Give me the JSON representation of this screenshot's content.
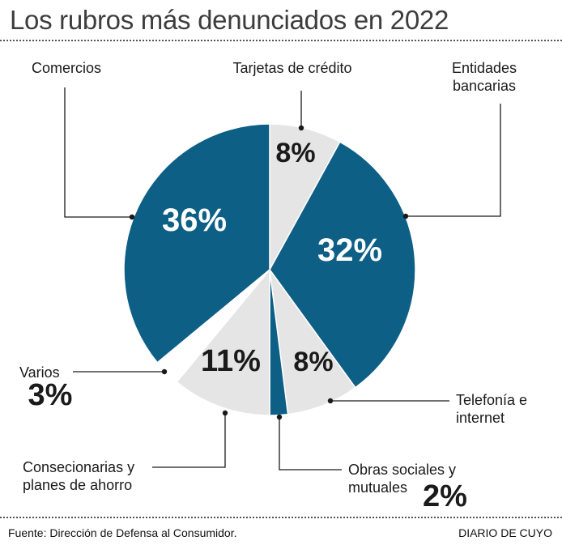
{
  "title": "Los rubros más denunciados en 2022",
  "source": "Fuente: Dirección de Defensa al Consumidor.",
  "brand": "DIARIO DE CUYO",
  "colors": {
    "dark": "#0e5f86",
    "light": "#e5e5e6"
  },
  "chart_data": {
    "type": "pie",
    "title": "Los rubros más denunciados en 2022",
    "slices": [
      {
        "label": "Tarjetas de crédito",
        "value": 8,
        "display": "8%",
        "color": "#e5e5e6"
      },
      {
        "label": "Entidades bancarias",
        "value": 32,
        "display": "32%",
        "color": "#0e5f86"
      },
      {
        "label": "Telefonía e internet",
        "value": 8,
        "display": "8%",
        "color": "#e5e5e6"
      },
      {
        "label": "Obras sociales y mutuales",
        "value": 2,
        "display": "2%",
        "color": "#0e5f86"
      },
      {
        "label": "Consecionarias y planes de ahorro",
        "value": 11,
        "display": "11%",
        "color": "#e5e5e6"
      },
      {
        "label": "Varios",
        "value": 3,
        "display": "3%",
        "color": "#ffffff"
      },
      {
        "label": "Comercios",
        "value": 36,
        "display": "36%",
        "color": "#0e5f86"
      }
    ]
  }
}
